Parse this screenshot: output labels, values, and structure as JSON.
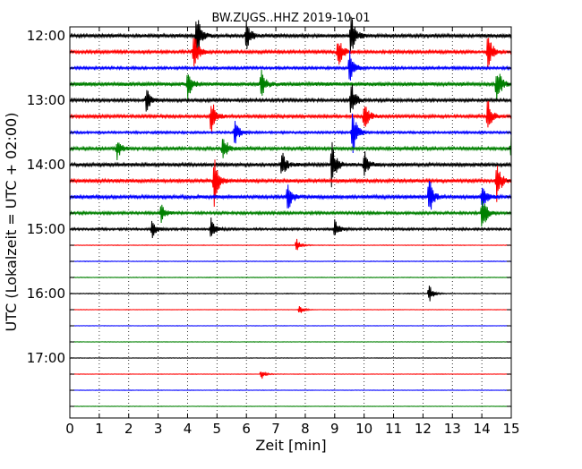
{
  "chart_data": {
    "type": "line",
    "title": "BW.ZUGS..HHZ 2019-10-01",
    "xlabel": "Zeit  [min]",
    "ylabel": "UTC (Lokalzeit = UTC + 02:00)",
    "xlim": [
      0,
      15
    ],
    "x_ticks": [
      0,
      1,
      2,
      3,
      4,
      5,
      6,
      7,
      8,
      9,
      10,
      11,
      12,
      13,
      14,
      15
    ],
    "x_tick_labels": [
      "0",
      "1",
      "2",
      "3",
      "4",
      "5",
      "6",
      "7",
      "8",
      "9",
      "10",
      "11",
      "12",
      "13",
      "14",
      "15"
    ],
    "grid": "vertical dotted",
    "row_minutes": 15,
    "y_tick_labels": [
      "12:00",
      "13:00",
      "14:00",
      "15:00",
      "16:00",
      "17:00"
    ],
    "y_tick_row_index": [
      0,
      4,
      8,
      12,
      16,
      20
    ],
    "row_colors_cycle": [
      "#000000",
      "#ff0000",
      "#0000ff",
      "#008000"
    ],
    "traces": [
      {
        "start": "12:00",
        "noise": 0.45,
        "events": [
          [
            4.3,
            1.0
          ],
          [
            6.0,
            0.55
          ],
          [
            9.55,
            0.9
          ]
        ]
      },
      {
        "start": "12:15",
        "noise": 0.4,
        "events": [
          [
            4.2,
            0.8
          ],
          [
            9.1,
            0.75
          ],
          [
            14.2,
            0.8
          ]
        ]
      },
      {
        "start": "12:30",
        "noise": 0.35,
        "events": [
          [
            9.5,
            0.7
          ]
        ]
      },
      {
        "start": "12:45",
        "noise": 0.5,
        "events": [
          [
            4.0,
            0.6
          ],
          [
            6.5,
            0.5
          ],
          [
            14.5,
            0.8
          ]
        ]
      },
      {
        "start": "13:00",
        "noise": 0.4,
        "events": [
          [
            2.6,
            0.45
          ],
          [
            9.55,
            0.8
          ]
        ]
      },
      {
        "start": "13:15",
        "noise": 0.4,
        "events": [
          [
            4.8,
            0.75
          ],
          [
            10.0,
            0.7
          ],
          [
            14.2,
            0.7
          ]
        ]
      },
      {
        "start": "13:30",
        "noise": 0.3,
        "events": [
          [
            5.6,
            0.5
          ],
          [
            9.6,
            0.95
          ]
        ]
      },
      {
        "start": "13:45",
        "noise": 0.4,
        "events": [
          [
            1.6,
            0.4
          ],
          [
            5.2,
            0.6
          ],
          [
            15.0,
            0.7
          ]
        ]
      },
      {
        "start": "14:00",
        "noise": 0.45,
        "events": [
          [
            7.2,
            0.5
          ],
          [
            8.9,
            0.95
          ],
          [
            10.0,
            0.55
          ]
        ]
      },
      {
        "start": "14:15",
        "noise": 0.45,
        "events": [
          [
            4.9,
            1.0
          ],
          [
            14.5,
            0.8
          ]
        ]
      },
      {
        "start": "14:30",
        "noise": 0.45,
        "events": [
          [
            7.4,
            0.6
          ],
          [
            12.2,
            0.75
          ],
          [
            14.0,
            0.5
          ]
        ]
      },
      {
        "start": "14:45",
        "noise": 0.35,
        "events": [
          [
            3.1,
            0.35
          ],
          [
            14.0,
            0.8
          ]
        ]
      },
      {
        "start": "15:00",
        "noise": 0.3,
        "events": [
          [
            2.8,
            0.35
          ],
          [
            4.8,
            0.4
          ],
          [
            9.0,
            0.35
          ]
        ]
      },
      {
        "start": "15:15",
        "noise": 0.08,
        "events": [
          [
            7.7,
            0.25
          ]
        ]
      },
      {
        "start": "15:30",
        "noise": 0.08,
        "events": []
      },
      {
        "start": "15:45",
        "noise": 0.08,
        "events": []
      },
      {
        "start": "16:00",
        "noise": 0.1,
        "events": [
          [
            12.2,
            0.35
          ]
        ]
      },
      {
        "start": "16:15",
        "noise": 0.06,
        "events": [
          [
            7.8,
            0.2
          ]
        ]
      },
      {
        "start": "16:30",
        "noise": 0.06,
        "events": []
      },
      {
        "start": "16:45",
        "noise": 0.06,
        "events": []
      },
      {
        "start": "17:00",
        "noise": 0.07,
        "events": []
      },
      {
        "start": "17:15",
        "noise": 0.06,
        "events": [
          [
            6.5,
            0.2
          ]
        ]
      },
      {
        "start": "17:30",
        "noise": 0.06,
        "events": []
      },
      {
        "start": "17:45",
        "noise": 0.06,
        "events": []
      }
    ]
  }
}
